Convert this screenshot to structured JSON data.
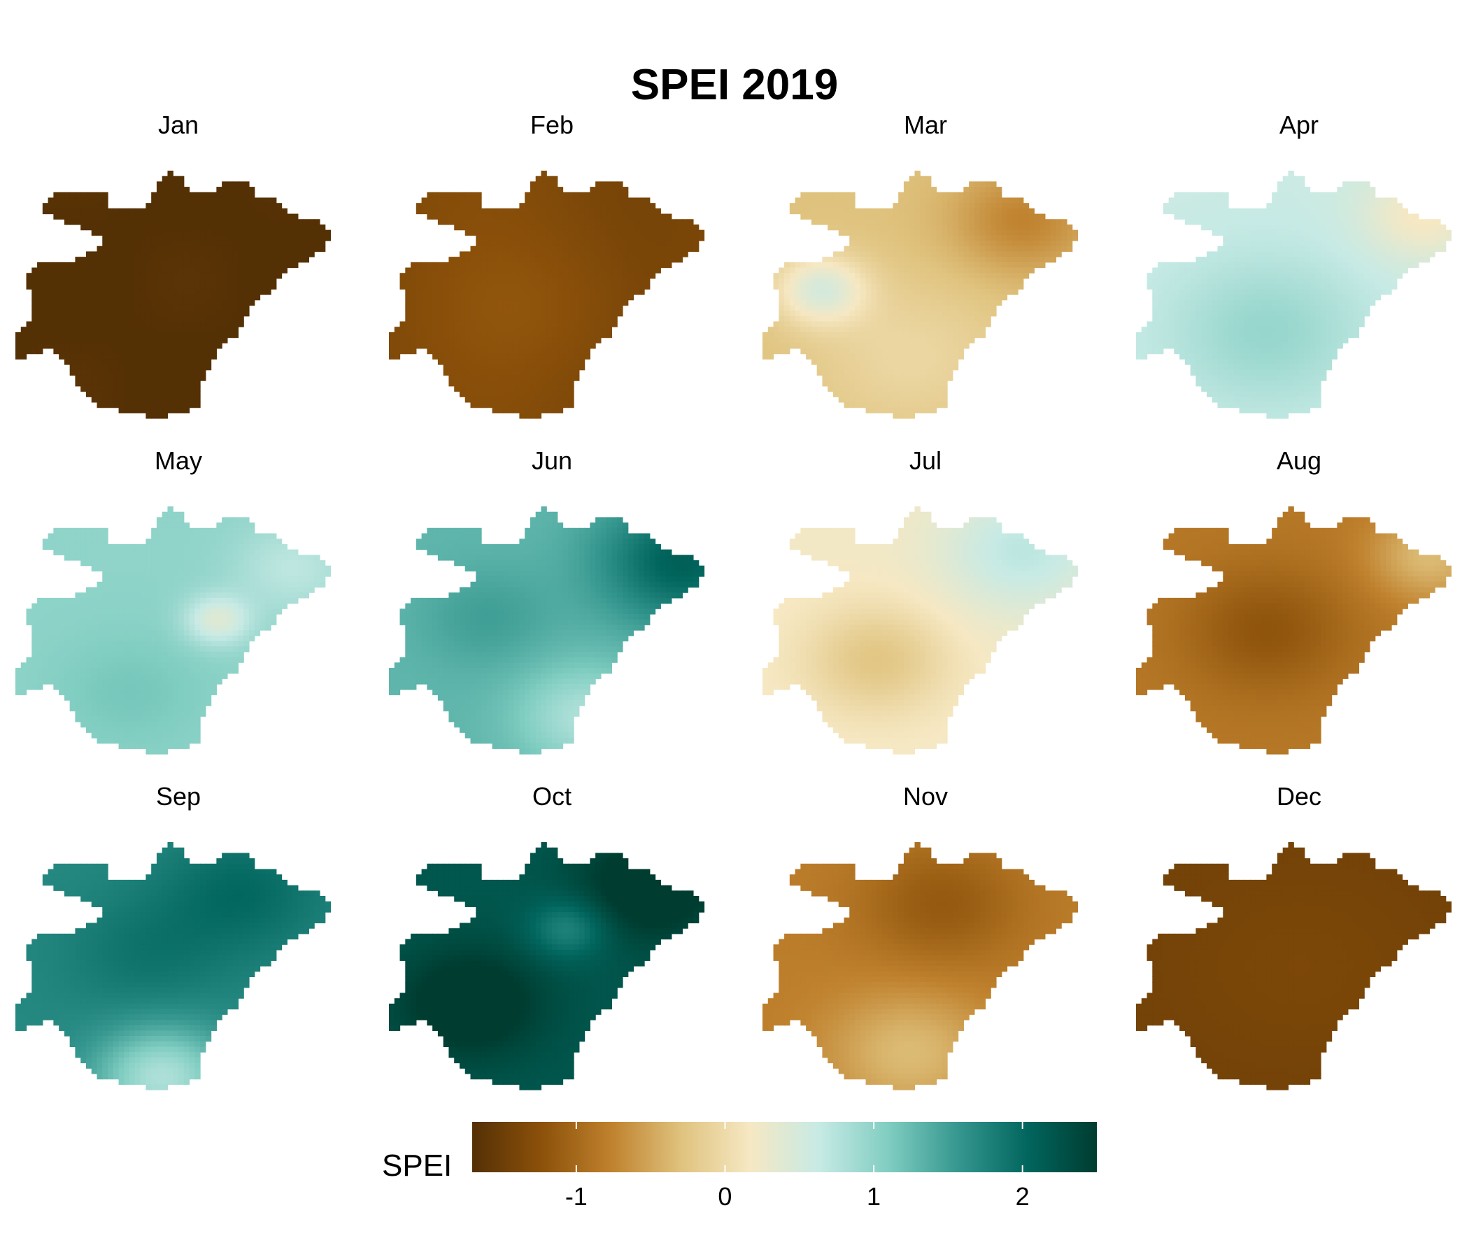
{
  "chart_data": {
    "type": "heatmap",
    "title": "SPEI 2019",
    "panels": [
      {
        "month": "Jan",
        "mean_spei": -1.7,
        "pattern": "uniform"
      },
      {
        "month": "Feb",
        "mean_spei": -1.35,
        "pattern": "uniform"
      },
      {
        "month": "Mar",
        "mean_spei": -0.3,
        "pattern": "wet spot west, dry north-east"
      },
      {
        "month": "Apr",
        "mean_spei": 0.6,
        "pattern": "wetter south, drier north-east"
      },
      {
        "month": "May",
        "mean_spei": 1.0,
        "pattern": "dry spot centre-east"
      },
      {
        "month": "Jun",
        "mean_spei": 1.3,
        "pattern": "wettest north-east"
      },
      {
        "month": "Jul",
        "mean_spei": 0.2,
        "pattern": "wetter north-east, drier south-centre"
      },
      {
        "month": "Aug",
        "mean_spei": -0.85,
        "pattern": "driest centre, lighter north-east"
      },
      {
        "month": "Sep",
        "mean_spei": 1.7,
        "pattern": "lighter south tip"
      },
      {
        "month": "Oct",
        "mean_spei": 2.2,
        "pattern": "darkest south-west and north-east"
      },
      {
        "month": "Nov",
        "mean_spei": -0.8,
        "pattern": "drier north, lighter south"
      },
      {
        "month": "Dec",
        "mean_spei": -1.45,
        "pattern": "uniform"
      }
    ],
    "colorbar": {
      "label": "SPEI",
      "range": [
        -1.7,
        2.5
      ],
      "ticks": [
        -1,
        0,
        1,
        2
      ],
      "tick_labels": [
        "-1",
        "0",
        "1",
        "2"
      ],
      "colormap": [
        "#543005",
        "#8c510a",
        "#bf812d",
        "#dfc27d",
        "#f6e8c3",
        "#c7eae5",
        "#80cdc1",
        "#35978f",
        "#01665e",
        "#003c30"
      ]
    }
  }
}
